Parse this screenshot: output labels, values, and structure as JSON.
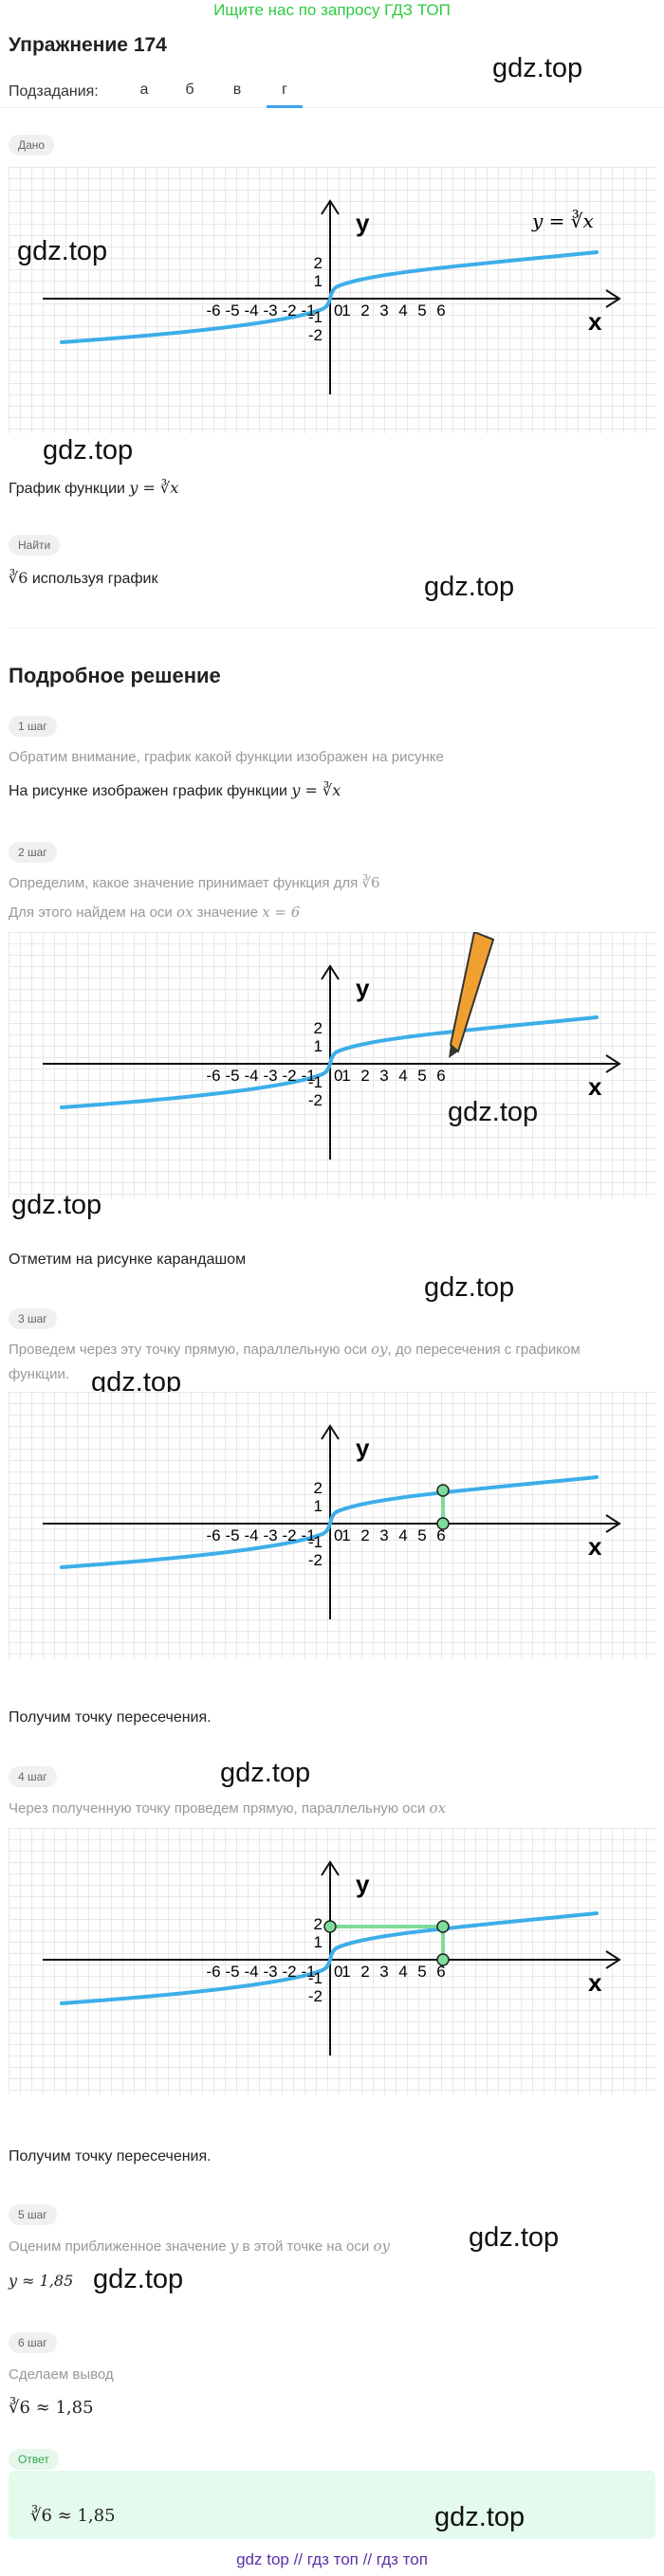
{
  "banner": "Ищите нас по запросу ГДЗ ТОП",
  "title": "Упражнение 174",
  "watermark": "gdz.top",
  "subtasks": {
    "label": "Подзадания:",
    "items": [
      "а",
      "б",
      "в",
      "г"
    ],
    "active": "г"
  },
  "given": {
    "pill": "Дано",
    "curve_label": "y = ∛x",
    "caption_text": "График функции",
    "caption_math": "y = ∛x"
  },
  "find": {
    "pill": "Найти",
    "math": "∛6",
    "text": "используя график"
  },
  "solution_title": "Подробное решение",
  "graph_labels": {
    "y_axis": "y",
    "x_axis": "x",
    "x_ticks": [
      "-6",
      "-5",
      "-4",
      "-3",
      "-2",
      "-1",
      "0",
      "1",
      "2",
      "3",
      "4",
      "5",
      "6"
    ],
    "y_ticks": [
      "2",
      "1",
      "-1",
      "-2"
    ]
  },
  "steps": [
    {
      "pill": "1 шаг",
      "desc": "Обратим внимание, график какой функции изображен на рисунке",
      "text": "На рисунке изображен график функции",
      "math": "y = ∛x"
    },
    {
      "pill": "2 шаг",
      "desc": "Определим, какое значение принимает функция для",
      "desc_math": "∛6",
      "desc2": "Для этого найдем на оси",
      "desc2_math1": "ox",
      "desc2_mid": "значение",
      "desc2_math2": "x = 6",
      "text": "Отметим на рисунке карандашом"
    },
    {
      "pill": "3 шаг",
      "desc_a": "Проведем через эту точку прямую, параллельную оси",
      "desc_math": "oy",
      "desc_b": ", до пересечения с графиком",
      "desc_c": "функции.",
      "text": "Получим точку пересечения."
    },
    {
      "pill": "4 шаг",
      "desc": "Через полученную точку проведем прямую, параллельную оси",
      "desc_math": "ox",
      "text": "Получим точку пересечения."
    },
    {
      "pill": "5 шаг",
      "desc": "Оценим приближенное значение",
      "desc_math1": "y",
      "desc_mid": "в этой точке на оси",
      "desc_math2": "oy",
      "math": "y ≈ 1,85"
    },
    {
      "pill": "6 шаг",
      "desc": "Сделаем вывод",
      "math": "∛6 ≈ 1,85"
    }
  ],
  "answer": {
    "pill": "Ответ",
    "math": "∛6 ≈ 1,85"
  },
  "footer": "gdz top  //  гдз топ  //  гдз топ",
  "colors": {
    "curve": "#3daee9",
    "green": "#2ecc40",
    "marker": "#7ddc9a",
    "pencil": "#f0a030",
    "footer": "#5a32a8"
  }
}
